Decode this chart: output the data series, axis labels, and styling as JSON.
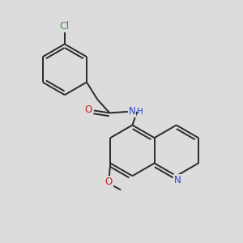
{
  "bg_color": "#dcdcdc",
  "bond_color": "#2a2a2a",
  "cl_color": "#3a9a3a",
  "o_color": "#cc2222",
  "n_color": "#2244cc",
  "font_size": 8.5,
  "lw": 1.4,
  "dbo": 0.013,
  "fig_w": 3.0,
  "fig_h": 3.0,
  "dpi": 100,
  "xlim": [
    0.0,
    1.0
  ],
  "ylim": [
    0.0,
    1.0
  ]
}
